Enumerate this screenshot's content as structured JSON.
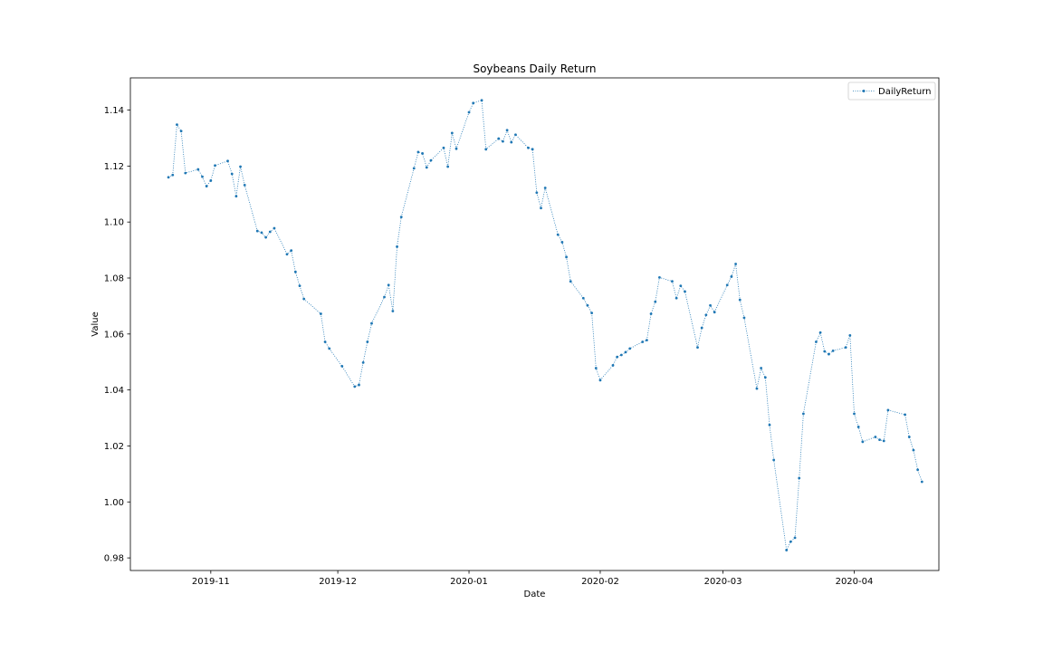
{
  "chart_data": {
    "type": "line",
    "title": "Soybeans Daily Return",
    "xlabel": "Date",
    "ylabel": "Value",
    "x_tick_labels": [
      "2019-11",
      "2019-12",
      "2020-01",
      "2020-02",
      "2020-03",
      "2020-04"
    ],
    "y_tick_labels": [
      "0.98",
      "1.00",
      "1.02",
      "1.04",
      "1.06",
      "1.08",
      "1.10",
      "1.12",
      "1.14"
    ],
    "xlim": [
      "2019-10-13",
      "2020-04-21"
    ],
    "ylim": [
      0.9755,
      1.1515
    ],
    "grid": false,
    "legend_position": "top-right",
    "series": [
      {
        "name": "DailyReturn",
        "color": "#1f77b4",
        "line_style": "dotted",
        "marker": "point",
        "x": [
          "2019-10-22",
          "2019-10-23",
          "2019-10-24",
          "2019-10-25",
          "2019-10-26",
          "2019-10-29",
          "2019-10-30",
          "2019-10-31",
          "2019-11-01",
          "2019-11-02",
          "2019-11-05",
          "2019-11-06",
          "2019-11-07",
          "2019-11-08",
          "2019-11-09",
          "2019-11-12",
          "2019-11-13",
          "2019-11-14",
          "2019-11-15",
          "2019-11-16",
          "2019-11-19",
          "2019-11-20",
          "2019-11-21",
          "2019-11-22",
          "2019-11-23",
          "2019-11-27",
          "2019-11-28",
          "2019-11-29",
          "2019-12-02",
          "2019-12-05",
          "2019-12-06",
          "2019-12-07",
          "2019-12-08",
          "2019-12-09",
          "2019-12-12",
          "2019-12-13",
          "2019-12-14",
          "2019-12-15",
          "2019-12-16",
          "2019-12-19",
          "2019-12-20",
          "2019-12-21",
          "2019-12-22",
          "2019-12-23",
          "2019-12-26",
          "2019-12-27",
          "2019-12-28",
          "2019-12-29",
          "2020-01-01",
          "2020-01-02",
          "2020-01-04",
          "2020-01-05",
          "2020-01-08",
          "2020-01-09",
          "2020-01-10",
          "2020-01-11",
          "2020-01-12",
          "2020-01-15",
          "2020-01-16",
          "2020-01-17",
          "2020-01-18",
          "2020-01-19",
          "2020-01-22",
          "2020-01-23",
          "2020-01-24",
          "2020-01-25",
          "2020-01-28",
          "2020-01-29",
          "2020-01-30",
          "2020-01-31",
          "2020-02-01",
          "2020-02-04",
          "2020-02-05",
          "2020-02-06",
          "2020-02-07",
          "2020-02-08",
          "2020-02-11",
          "2020-02-12",
          "2020-02-13",
          "2020-02-14",
          "2020-02-15",
          "2020-02-18",
          "2020-02-19",
          "2020-02-20",
          "2020-02-21",
          "2020-02-24",
          "2020-02-25",
          "2020-02-26",
          "2020-02-27",
          "2020-02-28",
          "2020-03-02",
          "2020-03-03",
          "2020-03-04",
          "2020-03-05",
          "2020-03-06",
          "2020-03-09",
          "2020-03-10",
          "2020-03-11",
          "2020-03-12",
          "2020-03-13",
          "2020-03-16",
          "2020-03-17",
          "2020-03-18",
          "2020-03-19",
          "2020-03-20",
          "2020-03-23",
          "2020-03-24",
          "2020-03-25",
          "2020-03-26",
          "2020-03-27",
          "2020-03-30",
          "2020-03-31",
          "2020-04-01",
          "2020-04-02",
          "2020-04-03",
          "2020-04-06",
          "2020-04-07",
          "2020-04-08",
          "2020-04-09",
          "2020-04-13",
          "2020-04-14",
          "2020-04-15",
          "2020-04-16",
          "2020-04-17"
        ],
        "y": [
          1.116,
          1.1168,
          1.1348,
          1.1325,
          1.1175,
          1.1188,
          1.1162,
          1.1128,
          1.1148,
          1.1202,
          1.1218,
          1.1172,
          1.1092,
          1.1198,
          1.1132,
          1.0968,
          1.0962,
          1.0945,
          1.0965,
          1.0978,
          1.0885,
          1.0898,
          1.0822,
          1.0772,
          1.0725,
          1.0672,
          1.0572,
          1.0548,
          1.0485,
          1.0412,
          1.0418,
          1.0498,
          1.0572,
          1.0638,
          1.0732,
          1.0775,
          1.0682,
          1.0912,
          1.1018,
          1.1192,
          1.125,
          1.1245,
          1.1195,
          1.122,
          1.1265,
          1.1198,
          1.1318,
          1.1262,
          1.1392,
          1.1425,
          1.1435,
          1.126,
          1.1298,
          1.1288,
          1.1328,
          1.1285,
          1.1312,
          1.1265,
          1.126,
          1.1105,
          1.105,
          1.1122,
          1.0955,
          1.0928,
          1.0875,
          1.0788,
          1.0728,
          1.0702,
          1.0675,
          1.0478,
          1.0435,
          1.0488,
          1.0518,
          1.0525,
          1.0535,
          1.0548,
          1.0572,
          1.0578,
          1.0672,
          1.0715,
          1.0802,
          1.0788,
          1.0728,
          1.0772,
          1.0752,
          1.0552,
          1.0622,
          1.0668,
          1.0702,
          1.0678,
          1.0775,
          1.0805,
          1.085,
          1.0722,
          1.0658,
          1.0405,
          1.0478,
          1.0445,
          1.0275,
          1.015,
          0.9828,
          0.9858,
          0.9872,
          1.0085,
          1.0315,
          1.0572,
          1.0605,
          1.0538,
          1.0528,
          1.054,
          1.0552,
          1.0595,
          1.0315,
          1.0268,
          1.0215,
          1.0232,
          1.0222,
          1.0218,
          1.0328,
          1.0312,
          1.0232,
          1.0185,
          1.0115,
          1.0072
        ]
      }
    ]
  }
}
